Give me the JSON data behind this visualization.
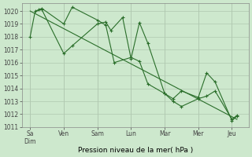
{
  "xlabel": "Pression niveau de la mer( hPa )",
  "background_color": "#cde8cd",
  "grid_color": "#b0c8b0",
  "line_color": "#2a6e2a",
  "ylim": [
    1011,
    1020.6
  ],
  "yticks": [
    1011,
    1012,
    1013,
    1014,
    1015,
    1016,
    1017,
    1018,
    1019,
    1020
  ],
  "day_labels": [
    "Sa​Dim",
    "Ven",
    "Sam",
    "Lun",
    "Mar",
    "Mer",
    "Jeu"
  ],
  "day_tick_positions": [
    0,
    2,
    4,
    6,
    8,
    10,
    12
  ],
  "xlim": [
    -0.5,
    13.0
  ],
  "series1_x": [
    0,
    0.3,
    0.7,
    2.0,
    2.5,
    4.0,
    4.5,
    4.8,
    5.5,
    6.0,
    6.5,
    7.0,
    8.0,
    8.5,
    9.0,
    10.0,
    10.5,
    11.0,
    12.0,
    12.3
  ],
  "series1_y": [
    1018.0,
    1020.0,
    1020.1,
    1016.7,
    1017.3,
    1019.0,
    1019.15,
    1018.5,
    1019.5,
    1016.3,
    1019.1,
    1017.5,
    1013.6,
    1013.2,
    1013.8,
    1013.3,
    1015.2,
    1014.5,
    1011.5,
    1011.85
  ],
  "series2_x": [
    0.5,
    0.7,
    2.0,
    2.5,
    4.0,
    4.5,
    5.0,
    6.0,
    6.5,
    7.0,
    8.0,
    8.5,
    9.0,
    10.0,
    10.5,
    11.0,
    12.0,
    12.3
  ],
  "series2_y": [
    1020.1,
    1020.2,
    1019.0,
    1020.3,
    1019.3,
    1018.9,
    1016.0,
    1016.4,
    1016.1,
    1014.35,
    1013.6,
    1013.0,
    1012.6,
    1013.2,
    1013.4,
    1013.8,
    1011.6,
    1011.9
  ],
  "series3_x": [
    0,
    12.3
  ],
  "series3_y": [
    1020.0,
    1011.6
  ]
}
